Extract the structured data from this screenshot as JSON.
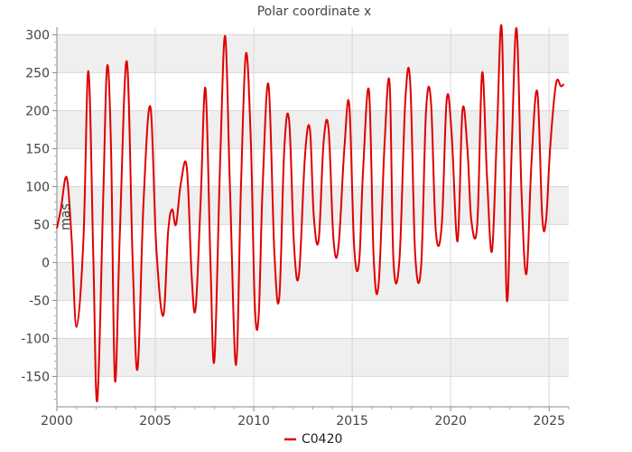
{
  "chart_data": {
    "type": "line",
    "title": "Polar coordinate x",
    "xlabel": "",
    "ylabel": "mas",
    "xlim": [
      2000,
      2026
    ],
    "ylim": [
      -190,
      310
    ],
    "x_ticks": [
      2000,
      2005,
      2010,
      2015,
      2020,
      2025
    ],
    "y_ticks": [
      -150,
      -100,
      -50,
      0,
      50,
      100,
      150,
      200,
      250,
      300
    ],
    "grid": true,
    "legend_position": "bottom",
    "colors": {
      "series": "#e00000",
      "band": "#efefef",
      "grid": "#d8d8d8"
    },
    "series": [
      {
        "name": "C0420",
        "x": [
          2000.0,
          2000.2,
          2000.5,
          2000.75,
          2001.0,
          2001.35,
          2001.6,
          2001.85,
          2002.05,
          2002.35,
          2002.55,
          2002.75,
          2002.95,
          2003.2,
          2003.55,
          2003.85,
          2004.1,
          2004.4,
          2004.75,
          2005.05,
          2005.4,
          2005.65,
          2005.85,
          2006.05,
          2006.3,
          2006.6,
          2006.85,
          2007.05,
          2007.3,
          2007.55,
          2007.8,
          2008.0,
          2008.3,
          2008.55,
          2008.8,
          2009.1,
          2009.35,
          2009.6,
          2009.85,
          2010.05,
          2010.25,
          2010.45,
          2010.75,
          2011.05,
          2011.3,
          2011.55,
          2011.8,
          2012.05,
          2012.3,
          2012.6,
          2012.85,
          2013.05,
          2013.3,
          2013.55,
          2013.8,
          2014.05,
          2014.3,
          2014.6,
          2014.85,
          2015.1,
          2015.35,
          2015.55,
          2015.85,
          2016.1,
          2016.35,
          2016.65,
          2016.9,
          2017.1,
          2017.4,
          2017.7,
          2017.95,
          2018.2,
          2018.5,
          2018.75,
          2019.0,
          2019.25,
          2019.55,
          2019.8,
          2020.05,
          2020.35,
          2020.6,
          2020.85,
          2021.05,
          2021.35,
          2021.6,
          2021.85,
          2022.1,
          2022.35,
          2022.6,
          2022.85,
          2023.1,
          2023.35,
          2023.6,
          2023.85,
          2024.1,
          2024.4,
          2024.65,
          2024.85,
          2025.05,
          2025.35,
          2025.6,
          2025.75
        ],
        "y": [
          45,
          70,
          112,
          30,
          -85,
          30,
          252,
          10,
          -182,
          80,
          258,
          150,
          -155,
          40,
          265,
          0,
          -140,
          80,
          205,
          20,
          -70,
          40,
          70,
          50,
          105,
          125,
          -20,
          -60,
          80,
          229,
          0,
          -128,
          140,
          298,
          90,
          -135,
          100,
          275,
          160,
          -55,
          -70,
          100,
          234,
          10,
          -45,
          150,
          186,
          20,
          -15,
          140,
          176,
          60,
          30,
          160,
          176,
          30,
          20,
          150,
          208,
          20,
          0,
          120,
          226,
          0,
          -25,
          160,
          235,
          0,
          5,
          215,
          236,
          10,
          -5,
          200,
          212,
          40,
          50,
          215,
          170,
          28,
          200,
          150,
          55,
          50,
          250,
          110,
          15,
          170,
          305,
          -48,
          150,
          308,
          90,
          -15,
          130,
          225,
          60,
          57,
          150,
          235,
          232,
          235
        ]
      }
    ]
  }
}
